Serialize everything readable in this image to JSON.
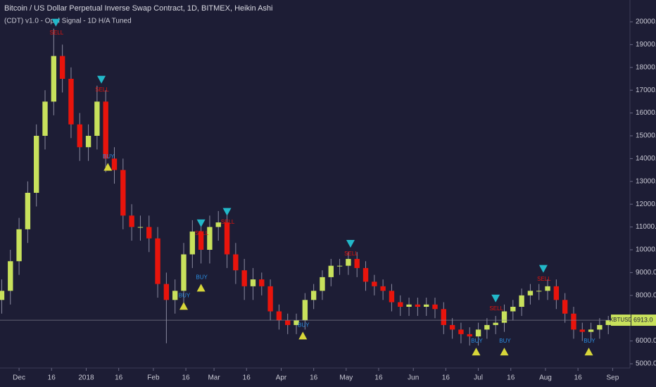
{
  "chart_data": {
    "type": "candlestick",
    "title": "Bitcoin / US Dollar Perpetual Inverse Swap Contract, 1D, BITMEX, Heikin Ashi",
    "subtitle": "(CDT) v1.0 - Opal Signal - 1D H/A Tuned",
    "x": [
      -8,
      -4,
      0,
      4,
      8,
      12,
      16,
      20,
      24,
      28,
      32,
      36,
      40,
      44,
      48,
      52,
      56,
      60,
      64,
      68,
      72,
      76,
      80,
      84,
      88,
      92,
      96,
      100,
      104,
      108,
      112,
      116,
      120,
      124,
      128,
      132,
      136,
      140,
      144,
      148,
      152,
      156,
      160,
      164,
      168,
      172,
      176,
      180,
      184,
      188,
      192,
      196,
      200,
      204,
      208,
      212,
      216,
      220,
      224,
      228,
      232,
      236,
      240,
      244,
      248,
      252,
      256,
      260,
      264,
      268,
      272
    ],
    "series": [
      {
        "name": "XBTUSD",
        "up_color": "#c8e15c",
        "down_color": "#e8140c",
        "open": [
          7800,
          8200,
          9500,
          10900,
          12500,
          15000,
          16500,
          18500,
          17500,
          15500,
          14500,
          15000,
          16500,
          14000,
          13500,
          11500,
          11000,
          11000,
          10500,
          8500,
          7800,
          8200,
          9800,
          10800,
          10000,
          11000,
          11200,
          9800,
          9100,
          8400,
          8700,
          8400,
          7300,
          6900,
          6700,
          6900,
          7800,
          8200,
          8800,
          9300,
          9300,
          9600,
          9200,
          8600,
          8400,
          8200,
          7700,
          7500,
          7600,
          7500,
          7600,
          7400,
          6700,
          6500,
          6300,
          6200,
          6500,
          6700,
          6800,
          7300,
          7500,
          8000,
          8200,
          8200,
          8400,
          7800,
          7200,
          6500,
          6400,
          6500,
          6700
        ],
        "high": [
          8700,
          10000,
          11400,
          13000,
          15500,
          17000,
          19700,
          19000,
          18000,
          16000,
          15500,
          17200,
          17000,
          14500,
          14000,
          12000,
          11500,
          11500,
          11000,
          9000,
          8700,
          10300,
          11300,
          11300,
          11500,
          11700,
          11700,
          10300,
          9600,
          9200,
          9000,
          8700,
          7600,
          7200,
          7200,
          8100,
          8500,
          9100,
          9600,
          9600,
          9900,
          9900,
          9500,
          8900,
          8700,
          8500,
          8000,
          7900,
          7900,
          7900,
          7900,
          7700,
          7000,
          6800,
          6600,
          6800,
          7000,
          7100,
          7600,
          7800,
          8300,
          8500,
          8500,
          8700,
          8700,
          8100,
          7500,
          6800,
          6800,
          7000,
          7100
        ],
        "low": [
          7200,
          7600,
          8900,
          10300,
          11900,
          14400,
          15900,
          16900,
          14900,
          13900,
          13900,
          14400,
          13400,
          12900,
          10900,
          10400,
          10400,
          9900,
          7900,
          5900,
          7200,
          7600,
          9200,
          9400,
          9400,
          10400,
          9200,
          8500,
          7800,
          7800,
          8000,
          6900,
          6500,
          6300,
          6300,
          6500,
          7400,
          7800,
          8400,
          8900,
          8900,
          8800,
          8200,
          8000,
          7800,
          7300,
          7100,
          7100,
          7100,
          7100,
          7000,
          6300,
          6100,
          5900,
          5800,
          5800,
          6100,
          6300,
          6400,
          6900,
          7100,
          7600,
          7800,
          7800,
          7400,
          6800,
          6100,
          6000,
          6000,
          6100,
          6300
        ],
        "close": [
          8200,
          9500,
          10900,
          12500,
          15000,
          16500,
          18500,
          17500,
          15500,
          14500,
          15000,
          16500,
          14000,
          13500,
          11500,
          11000,
          11000,
          10500,
          8500,
          7800,
          8200,
          9800,
          10800,
          10000,
          11000,
          11200,
          9800,
          9100,
          8400,
          8700,
          8400,
          7300,
          6900,
          6700,
          6900,
          7800,
          8200,
          8800,
          9300,
          9300,
          9600,
          9200,
          8600,
          8400,
          8200,
          7700,
          7500,
          7600,
          7500,
          7600,
          7400,
          6700,
          6500,
          6300,
          6200,
          6500,
          6700,
          6800,
          7300,
          7500,
          8000,
          8200,
          8200,
          8400,
          7800,
          7200,
          6500,
          6400,
          6500,
          6700,
          6913
        ]
      }
    ],
    "last_price": {
      "value": 6913,
      "label": "6913.0"
    },
    "signals": [
      {
        "text": "SELL",
        "x": 17,
        "y": 19700,
        "direction": "down"
      },
      {
        "text": "SELL",
        "x": 38,
        "y": 17200,
        "direction": "down"
      },
      {
        "text": "BUY",
        "x": 41,
        "y": 13900,
        "direction": "up"
      },
      {
        "text": "BUY",
        "x": 76,
        "y": 7800,
        "direction": "up"
      },
      {
        "text": "BUY",
        "x": 84,
        "y": 8600,
        "direction": "up"
      },
      {
        "text": "SELL",
        "x": 84,
        "y": 10900,
        "direction": "down"
      },
      {
        "text": "SELL",
        "x": 96,
        "y": 11400,
        "direction": "down"
      },
      {
        "text": "BUY",
        "x": 131,
        "y": 6500,
        "direction": "up"
      },
      {
        "text": "SELL",
        "x": 153,
        "y": 10000,
        "direction": "down"
      },
      {
        "text": "BUY",
        "x": 211,
        "y": 5800,
        "direction": "up"
      },
      {
        "text": "SELL",
        "x": 220,
        "y": 7600,
        "direction": "down"
      },
      {
        "text": "BUY",
        "x": 224,
        "y": 5800,
        "direction": "up"
      },
      {
        "text": "SELL",
        "x": 242,
        "y": 8900,
        "direction": "down"
      },
      {
        "text": "BUY",
        "x": 263,
        "y": 5800,
        "direction": "up"
      }
    ],
    "sell_color": "#22b8c9",
    "buy_color": "#d7d63a",
    "xlim": [
      -8.8,
      282
    ],
    "ylim": [
      4815,
      20957
    ],
    "xticks": [
      {
        "value": 0,
        "label": "Dec"
      },
      {
        "value": 15,
        "label": "16"
      },
      {
        "value": 31,
        "label": "2018"
      },
      {
        "value": 46,
        "label": "16"
      },
      {
        "value": 62,
        "label": "Feb"
      },
      {
        "value": 77,
        "label": "16"
      },
      {
        "value": 90,
        "label": "Mar"
      },
      {
        "value": 105,
        "label": "16"
      },
      {
        "value": 121,
        "label": "Apr"
      },
      {
        "value": 136,
        "label": "16"
      },
      {
        "value": 151,
        "label": "May"
      },
      {
        "value": 166,
        "label": "16"
      },
      {
        "value": 182,
        "label": "Jun"
      },
      {
        "value": 197,
        "label": "16"
      },
      {
        "value": 212,
        "label": "Jul"
      },
      {
        "value": 227,
        "label": "16"
      },
      {
        "value": 243,
        "label": "Aug"
      },
      {
        "value": 258,
        "label": "16"
      },
      {
        "value": 274,
        "label": "Sep"
      }
    ],
    "yticks": [
      {
        "value": 5000,
        "label": "5000.0"
      },
      {
        "value": 6000,
        "label": "6000.0"
      },
      {
        "value": 7000,
        "label": "7000.0"
      },
      {
        "value": 8000,
        "label": "8000.0"
      },
      {
        "value": 9000,
        "label": "9000.0"
      },
      {
        "value": 10000,
        "label": "10000.0"
      },
      {
        "value": 11000,
        "label": "11000.0"
      },
      {
        "value": 12000,
        "label": "12000.0"
      },
      {
        "value": 13000,
        "label": "13000.0"
      },
      {
        "value": 14000,
        "label": "14000.0"
      },
      {
        "value": 15000,
        "label": "15000.0"
      },
      {
        "value": 16000,
        "label": "16000.0"
      },
      {
        "value": 17000,
        "label": "17000.0"
      },
      {
        "value": 18000,
        "label": "18000.0"
      },
      {
        "value": 19000,
        "label": "19000.0"
      },
      {
        "value": 20000,
        "label": "20000.0"
      }
    ]
  }
}
